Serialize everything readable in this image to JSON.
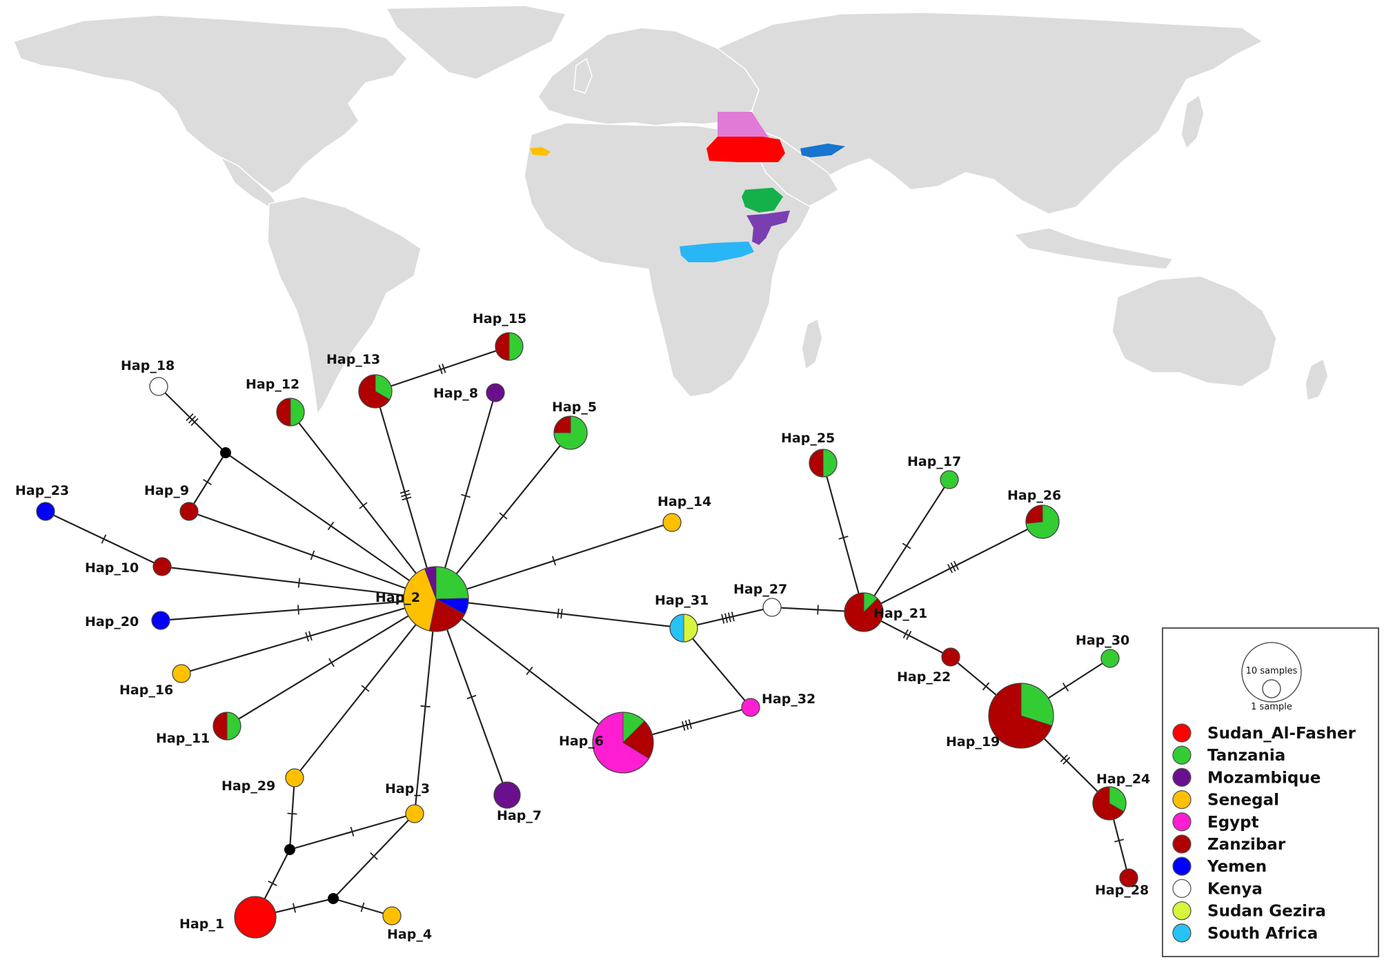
{
  "legend": {
    "size_large_label": "10 samples",
    "size_small_label": "1 sample",
    "entries": [
      {
        "key": "sudan_al_fasher",
        "label": "Sudan_Al-Fasher",
        "color": "#ff0000"
      },
      {
        "key": "tanzania",
        "label": "Tanzania",
        "color": "#33cc33"
      },
      {
        "key": "mozambique",
        "label": "Mozambique",
        "color": "#6a0f8e"
      },
      {
        "key": "senegal",
        "label": "Senegal",
        "color": "#ffc000"
      },
      {
        "key": "egypt",
        "label": "Egypt",
        "color": "#ff1ed2"
      },
      {
        "key": "zanzibar",
        "label": "Zanzibar",
        "color": "#b00000"
      },
      {
        "key": "yemen",
        "label": "Yemen",
        "color": "#0000ff"
      },
      {
        "key": "kenya",
        "label": "Kenya",
        "color": "#ffffff"
      },
      {
        "key": "sudan_gezira",
        "label": "Sudan Gezira",
        "color": "#d6f53c"
      },
      {
        "key": "south_africa",
        "label": "South Africa",
        "color": "#27c3f5"
      }
    ]
  },
  "map": {
    "land_color": "#dcdcdc",
    "highlighted_regions": [
      {
        "country": "Egypt",
        "color": "#e07ad6"
      },
      {
        "country": "Sudan",
        "color": "#ff0000"
      },
      {
        "country": "Yemen",
        "color": "#1874cd"
      },
      {
        "country": "Senegal",
        "color": "#ffc000"
      },
      {
        "country": "Tanzania",
        "color": "#14b04a"
      },
      {
        "country": "Mozambique",
        "color": "#7a3eb1"
      },
      {
        "country": "South Africa",
        "color": "#29b6f6"
      }
    ]
  },
  "haplotypes": [
    {
      "id": "Hap_1",
      "label": "Hap_1",
      "parts": [
        [
          "sudan_al_fasher",
          1
        ]
      ]
    },
    {
      "id": "Hap_2",
      "label": "Hap_2",
      "parts": [
        [
          "tanzania",
          3
        ],
        [
          "yemen",
          1
        ],
        [
          "zanzibar",
          2.5
        ],
        [
          "senegal",
          5
        ],
        [
          "mozambique",
          0.7
        ]
      ]
    },
    {
      "id": "Hap_3",
      "label": "Hap_3",
      "parts": [
        [
          "senegal",
          1
        ]
      ]
    },
    {
      "id": "Hap_4",
      "label": "Hap_4",
      "parts": [
        [
          "senegal",
          1
        ]
      ]
    },
    {
      "id": "Hap_5",
      "label": "Hap_5",
      "parts": [
        [
          "tanzania",
          3
        ],
        [
          "zanzibar",
          1
        ]
      ]
    },
    {
      "id": "Hap_6",
      "label": "Hap_6",
      "parts": [
        [
          "tanzania",
          1
        ],
        [
          "zanzibar",
          1.7
        ],
        [
          "egypt",
          5.3
        ]
      ]
    },
    {
      "id": "Hap_7",
      "label": "Hap_7",
      "parts": [
        [
          "mozambique",
          1
        ]
      ]
    },
    {
      "id": "Hap_8",
      "label": "Hap_8",
      "parts": [
        [
          "mozambique",
          1
        ]
      ]
    },
    {
      "id": "Hap_9",
      "label": "Hap_9",
      "parts": [
        [
          "zanzibar",
          1
        ]
      ]
    },
    {
      "id": "Hap_10",
      "label": "Hap_10",
      "parts": [
        [
          "zanzibar",
          1
        ]
      ]
    },
    {
      "id": "Hap_11",
      "label": "Hap_11",
      "parts": [
        [
          "tanzania",
          1
        ],
        [
          "zanzibar",
          1
        ]
      ]
    },
    {
      "id": "Hap_12",
      "label": "Hap_12",
      "parts": [
        [
          "tanzania",
          1
        ],
        [
          "zanzibar",
          1
        ]
      ]
    },
    {
      "id": "Hap_13",
      "label": "Hap_13",
      "parts": [
        [
          "tanzania",
          1
        ],
        [
          "zanzibar",
          2
        ]
      ]
    },
    {
      "id": "Hap_14",
      "label": "Hap_14",
      "parts": [
        [
          "senegal",
          1
        ]
      ]
    },
    {
      "id": "Hap_15",
      "label": "Hap_15",
      "parts": [
        [
          "tanzania",
          1
        ],
        [
          "zanzibar",
          1
        ]
      ]
    },
    {
      "id": "Hap_16",
      "label": "Hap_16",
      "parts": [
        [
          "senegal",
          1
        ]
      ]
    },
    {
      "id": "Hap_17",
      "label": "Hap_17",
      "parts": [
        [
          "tanzania",
          1
        ]
      ]
    },
    {
      "id": "Hap_18",
      "label": "Hap_18",
      "parts": [
        [
          "kenya",
          1
        ]
      ]
    },
    {
      "id": "Hap_19",
      "label": "Hap_19",
      "parts": [
        [
          "tanzania",
          3
        ],
        [
          "zanzibar",
          7
        ]
      ]
    },
    {
      "id": "Hap_20",
      "label": "Hap_20",
      "parts": [
        [
          "yemen",
          1
        ]
      ]
    },
    {
      "id": "Hap_21",
      "label": "Hap_21",
      "parts": [
        [
          "tanzania",
          0.5
        ],
        [
          "zanzibar",
          3.5
        ]
      ]
    },
    {
      "id": "Hap_22",
      "label": "Hap_22",
      "parts": [
        [
          "zanzibar",
          1
        ]
      ]
    },
    {
      "id": "Hap_23",
      "label": "Hap_23",
      "parts": [
        [
          "yemen",
          1
        ]
      ]
    },
    {
      "id": "Hap_24",
      "label": "Hap_24",
      "parts": [
        [
          "tanzania",
          1
        ],
        [
          "zanzibar",
          2
        ]
      ]
    },
    {
      "id": "Hap_25",
      "label": "Hap_25",
      "parts": [
        [
          "tanzania",
          1
        ],
        [
          "zanzibar",
          1
        ]
      ]
    },
    {
      "id": "Hap_26",
      "label": "Hap_26",
      "parts": [
        [
          "tanzania",
          2.2
        ],
        [
          "zanzibar",
          0.8
        ]
      ]
    },
    {
      "id": "Hap_27",
      "label": "Hap_27",
      "parts": [
        [
          "kenya",
          1
        ]
      ]
    },
    {
      "id": "Hap_28",
      "label": "Hap_28",
      "parts": [
        [
          "zanzibar",
          1
        ]
      ]
    },
    {
      "id": "Hap_29",
      "label": "Hap_29",
      "parts": [
        [
          "senegal",
          1
        ]
      ]
    },
    {
      "id": "Hap_30",
      "label": "Hap_30",
      "parts": [
        [
          "tanzania",
          1
        ]
      ]
    },
    {
      "id": "Hap_31",
      "label": "Hap_31",
      "parts": [
        [
          "sudan_gezira",
          1
        ],
        [
          "south_africa",
          1
        ]
      ]
    },
    {
      "id": "Hap_32",
      "label": "Hap_32",
      "parts": [
        [
          "egypt",
          1
        ]
      ]
    }
  ],
  "median_vectors": [
    "mv1",
    "mv2",
    "mv3",
    "mv4"
  ],
  "edges": [
    {
      "from": "Hap_2",
      "to": "Hap_15_13_branch",
      "note": "",
      "mutations": 0
    },
    {
      "from": "Hap_13",
      "to": "Hap_15",
      "mutations": 2
    },
    {
      "from": "Hap_2",
      "to": "Hap_13",
      "mutations": 3
    },
    {
      "from": "Hap_2",
      "to": "Hap_12",
      "mutations": 1
    },
    {
      "from": "Hap_2",
      "to": "mv1",
      "mutations": 1
    },
    {
      "from": "mv1",
      "to": "Hap_18",
      "mutations": 3
    },
    {
      "from": "mv1",
      "to": "Hap_9",
      "mutations": 1
    },
    {
      "from": "Hap_2",
      "to": "Hap_9",
      "mutations": 1
    },
    {
      "from": "Hap_2",
      "to": "Hap_8",
      "mutations": 1
    },
    {
      "from": "Hap_2",
      "to": "Hap_5",
      "mutations": 1
    },
    {
      "from": "Hap_2",
      "to": "Hap_14",
      "mutations": 1
    },
    {
      "from": "Hap_2",
      "to": "Hap_10",
      "mutations": 1
    },
    {
      "from": "Hap_10",
      "to": "Hap_23",
      "mutations": 1
    },
    {
      "from": "Hap_2",
      "to": "Hap_20",
      "mutations": 1
    },
    {
      "from": "Hap_2",
      "to": "Hap_16",
      "mutations": 2
    },
    {
      "from": "Hap_2",
      "to": "Hap_11",
      "mutations": 1
    },
    {
      "from": "Hap_2",
      "to": "Hap_29",
      "mutations": 1
    },
    {
      "from": "Hap_2",
      "to": "Hap_3",
      "mutations": 1
    },
    {
      "from": "Hap_2",
      "to": "Hap_7",
      "mutations": 1
    },
    {
      "from": "Hap_2",
      "to": "Hap_6",
      "mutations": 1
    },
    {
      "from": "Hap_2",
      "to": "Hap_31",
      "mutations": 2
    },
    {
      "from": "Hap_31",
      "to": "Hap_27",
      "mutations": 4
    },
    {
      "from": "Hap_31",
      "to": "Hap_32",
      "mutations": 0
    },
    {
      "from": "Hap_6",
      "to": "Hap_32",
      "mutations": 3
    },
    {
      "from": "Hap_27",
      "to": "Hap_21",
      "mutations": 1
    },
    {
      "from": "Hap_21",
      "to": "Hap_25",
      "mutations": 1
    },
    {
      "from": "Hap_21",
      "to": "Hap_17",
      "mutations": 1
    },
    {
      "from": "Hap_21",
      "to": "Hap_26",
      "mutations": 3
    },
    {
      "from": "Hap_21",
      "to": "Hap_22",
      "mutations": 2
    },
    {
      "from": "Hap_22",
      "to": "Hap_19",
      "mutations": 1
    },
    {
      "from": "Hap_19",
      "to": "Hap_30",
      "mutations": 1
    },
    {
      "from": "Hap_19",
      "to": "Hap_24",
      "mutations": 2
    },
    {
      "from": "Hap_24",
      "to": "Hap_28",
      "mutations": 1
    },
    {
      "from": "Hap_29",
      "to": "mv2",
      "mutations": 1
    },
    {
      "from": "mv2",
      "to": "Hap_3",
      "mutations": 1
    },
    {
      "from": "mv2",
      "to": "Hap_1",
      "mutations": 1
    },
    {
      "from": "Hap_1",
      "to": "mv3",
      "mutations": 1
    },
    {
      "from": "mv3",
      "to": "Hap_3",
      "mutations": 1
    },
    {
      "from": "mv3",
      "to": "Hap_4",
      "mutations": 1
    }
  ]
}
